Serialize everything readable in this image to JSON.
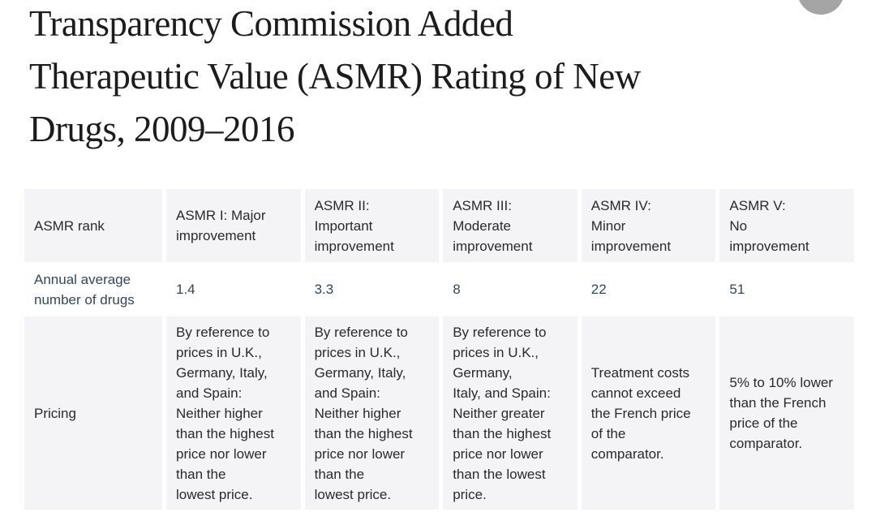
{
  "title": "Transparency Commission Added\nTherapeutic Value (ASMR) Rating of New\nDrugs, 2009–2016",
  "table": {
    "header": [
      "ASMR rank",
      "ASMR I: Major\nimprovement",
      "ASMR II:\nImportant\nimprovement",
      "ASMR III:\nModerate\nimprovement",
      "ASMR IV:\nMinor\nimprovement",
      "ASMR V:\nNo\nimprovement"
    ],
    "annual": {
      "label": "Annual average\nnumber of drugs",
      "values": [
        "1.4",
        "3.3",
        "8",
        "22",
        "51"
      ]
    },
    "pricing": {
      "label": "Pricing",
      "values": [
        "By reference to\nprices in U.K.,\nGermany, Italy,\nand Spain:\nNeither higher\nthan the highest\nprice nor lower\nthan the\nlowest price.",
        "By reference to\nprices in U.K.,\nGermany, Italy,\nand Spain:\nNeither higher\nthan the highest\nprice nor lower\nthan the\nlowest price.",
        "By reference to\nprices in U.K.,\nGermany,\nItaly, and Spain:\nNeither greater\nthan the highest\nprice nor lower\nthan the lowest\nprice.",
        "Treatment costs\ncannot exceed\nthe French price\nof the\ncomparator.",
        "5% to 10% lower\nthan the French\nprice of the\ncomparator."
      ]
    }
  },
  "colors": {
    "cell_bg": "#f4f4f6",
    "accent_navy": "#33475c",
    "title_text": "#1c1c1c",
    "body_text": "#2a2a2c",
    "circle_gray": "#a5a5a5"
  }
}
